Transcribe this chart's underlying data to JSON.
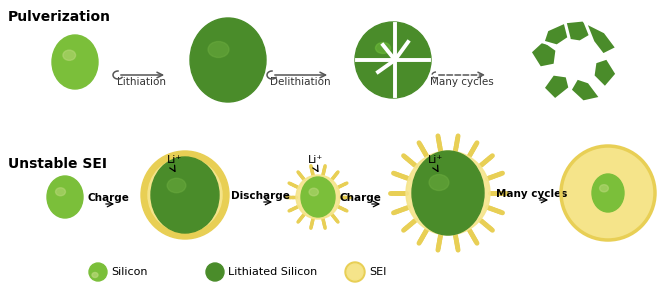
{
  "bg_color": "#ffffff",
  "dark_green": "#4a8c2a",
  "mid_green": "#5a9c35",
  "light_green": "#7bbf3a",
  "lighter_green": "#b8d878",
  "sei_yellow": "#f5e48a",
  "sei_yellow_border": "#e8cf55",
  "title_pulverization": "Pulverization",
  "title_unstable": "Unstable SEI",
  "label_lithiation": "Lithiation",
  "label_delithiation": "Delithiation",
  "label_many_cycles_top": "Many cycles",
  "label_charge1": "Charge",
  "label_discharge": "Discharge",
  "label_charge2": "Charge",
  "label_many_cycles_bot": "Many cycles",
  "legend_silicon": "Silicon",
  "legend_lithiated": "Lithiated Silicon",
  "legend_sei": "SEI",
  "li_label": "Li⁺"
}
